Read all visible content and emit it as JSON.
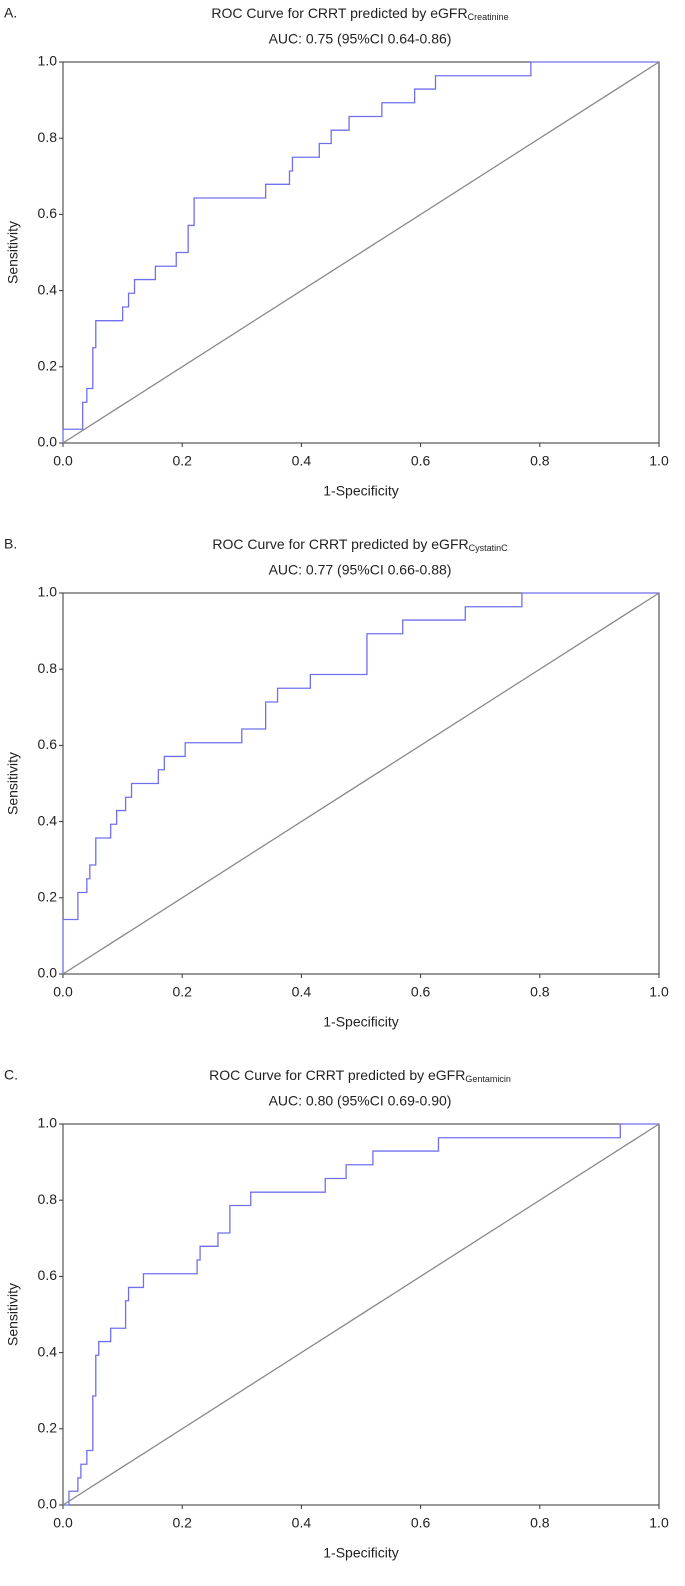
{
  "chart_data": [
    {
      "type": "line",
      "panel": "A.",
      "title": "ROC Curve for CRRT predicted by eGFR",
      "title_subscript": "Creatinine",
      "subtitle": "AUC: 0.75 (95%CI 0.64-0.86)",
      "x_label": "1-Specificity",
      "y_label": "Sensitivity",
      "xlim": [
        0,
        1
      ],
      "ylim": [
        0,
        1
      ],
      "xticks": [
        {
          "value": 0,
          "label": "0.0"
        },
        {
          "value": 0.2,
          "label": "0.2"
        },
        {
          "value": 0.4,
          "label": "0.4"
        },
        {
          "value": 0.6,
          "label": "0.6"
        },
        {
          "value": 0.8,
          "label": "0.8"
        },
        {
          "value": 1,
          "label": "1.0"
        }
      ],
      "yticks": [
        {
          "value": 0,
          "label": "0.0"
        },
        {
          "value": 0.2,
          "label": "0.2"
        },
        {
          "value": 0.4,
          "label": "0.4"
        },
        {
          "value": 0.6,
          "label": "0.6"
        },
        {
          "value": 0.8,
          "label": "0.8"
        },
        {
          "value": 1,
          "label": "1.0"
        }
      ],
      "series": [
        {
          "color": "#7070ee",
          "x": [
            0,
            0,
            0.033,
            0.033,
            0.04,
            0.04,
            0.05,
            0.05,
            0.055,
            0.055,
            0.1,
            0.1,
            0.11,
            0.11,
            0.12,
            0.12,
            0.155,
            0.155,
            0.19,
            0.19,
            0.21,
            0.21,
            0.22,
            0.22,
            0.34,
            0.34,
            0.38,
            0.38,
            0.385,
            0.385,
            0.43,
            0.43,
            0.45,
            0.45,
            0.48,
            0.48,
            0.535,
            0.535,
            0.59,
            0.59,
            0.625,
            0.625,
            0.785,
            0.785,
            1
          ],
          "values": [
            0,
            0.036,
            0.036,
            0.107,
            0.107,
            0.143,
            0.143,
            0.25,
            0.25,
            0.321,
            0.321,
            0.357,
            0.357,
            0.393,
            0.393,
            0.429,
            0.429,
            0.464,
            0.464,
            0.5,
            0.5,
            0.571,
            0.571,
            0.643,
            0.643,
            0.679,
            0.679,
            0.714,
            0.714,
            0.75,
            0.75,
            0.786,
            0.786,
            0.821,
            0.821,
            0.857,
            0.857,
            0.893,
            0.893,
            0.929,
            0.929,
            0.964,
            0.964,
            1,
            1
          ]
        },
        {
          "color": "#888888",
          "x": [
            0,
            1
          ],
          "values": [
            0,
            1
          ]
        }
      ]
    },
    {
      "type": "line",
      "panel": "B.",
      "title": "ROC Curve for CRRT predicted by eGFR",
      "title_subscript": "CystatinC",
      "subtitle": "AUC: 0.77 (95%CI 0.66-0.88)",
      "x_label": "1-Specificity",
      "y_label": "Sensitivity",
      "xlim": [
        0,
        1
      ],
      "ylim": [
        0,
        1
      ],
      "xticks": [
        {
          "value": 0,
          "label": "0.0"
        },
        {
          "value": 0.2,
          "label": "0.2"
        },
        {
          "value": 0.4,
          "label": "0.4"
        },
        {
          "value": 0.6,
          "label": "0.6"
        },
        {
          "value": 0.8,
          "label": "0.8"
        },
        {
          "value": 1,
          "label": "1.0"
        }
      ],
      "yticks": [
        {
          "value": 0,
          "label": "0.0"
        },
        {
          "value": 0.2,
          "label": "0.2"
        },
        {
          "value": 0.4,
          "label": "0.4"
        },
        {
          "value": 0.6,
          "label": "0.6"
        },
        {
          "value": 0.8,
          "label": "0.8"
        },
        {
          "value": 1,
          "label": "1.0"
        }
      ],
      "series": [
        {
          "color": "#7070ee",
          "x": [
            0,
            0,
            0.025,
            0.025,
            0.04,
            0.04,
            0.045,
            0.045,
            0.055,
            0.055,
            0.08,
            0.08,
            0.09,
            0.09,
            0.105,
            0.105,
            0.115,
            0.115,
            0.16,
            0.16,
            0.17,
            0.17,
            0.205,
            0.205,
            0.3,
            0.3,
            0.34,
            0.34,
            0.36,
            0.36,
            0.415,
            0.415,
            0.51,
            0.51,
            0.57,
            0.57,
            0.675,
            0.675,
            0.77,
            0.77,
            1
          ],
          "values": [
            0,
            0.143,
            0.143,
            0.214,
            0.214,
            0.25,
            0.25,
            0.286,
            0.286,
            0.357,
            0.357,
            0.393,
            0.393,
            0.429,
            0.429,
            0.464,
            0.464,
            0.5,
            0.5,
            0.536,
            0.536,
            0.571,
            0.571,
            0.607,
            0.607,
            0.643,
            0.643,
            0.714,
            0.714,
            0.75,
            0.75,
            0.786,
            0.786,
            0.893,
            0.893,
            0.929,
            0.929,
            0.964,
            0.964,
            1,
            1
          ]
        },
        {
          "color": "#888888",
          "x": [
            0,
            1
          ],
          "values": [
            0,
            1
          ]
        }
      ]
    },
    {
      "type": "line",
      "panel": "C.",
      "title": "ROC Curve for CRRT predicted by eGFR",
      "title_subscript": "Gentamicin",
      "subtitle": "AUC: 0.80 (95%CI 0.69-0.90)",
      "x_label": "1-Specificity",
      "y_label": "Sensitivity",
      "xlim": [
        0,
        1
      ],
      "ylim": [
        0,
        1
      ],
      "xticks": [
        {
          "value": 0,
          "label": "0.0"
        },
        {
          "value": 0.2,
          "label": "0.2"
        },
        {
          "value": 0.4,
          "label": "0.4"
        },
        {
          "value": 0.6,
          "label": "0.6"
        },
        {
          "value": 0.8,
          "label": "0.8"
        },
        {
          "value": 1,
          "label": "1.0"
        }
      ],
      "yticks": [
        {
          "value": 0,
          "label": "0.0"
        },
        {
          "value": 0.2,
          "label": "0.2"
        },
        {
          "value": 0.4,
          "label": "0.4"
        },
        {
          "value": 0.6,
          "label": "0.6"
        },
        {
          "value": 0.8,
          "label": "0.8"
        },
        {
          "value": 1,
          "label": "1.0"
        }
      ],
      "series": [
        {
          "color": "#7070ee",
          "x": [
            0,
            0.01,
            0.01,
            0.025,
            0.025,
            0.03,
            0.03,
            0.04,
            0.04,
            0.05,
            0.05,
            0.055,
            0.055,
            0.06,
            0.06,
            0.08,
            0.08,
            0.105,
            0.105,
            0.11,
            0.11,
            0.135,
            0.135,
            0.225,
            0.225,
            0.23,
            0.23,
            0.26,
            0.26,
            0.28,
            0.28,
            0.315,
            0.315,
            0.44,
            0.44,
            0.475,
            0.475,
            0.52,
            0.52,
            0.63,
            0.63,
            0.935,
            0.935,
            1
          ],
          "values": [
            0,
            0,
            0.036,
            0.036,
            0.071,
            0.071,
            0.107,
            0.107,
            0.143,
            0.143,
            0.286,
            0.286,
            0.393,
            0.393,
            0.429,
            0.429,
            0.464,
            0.464,
            0.536,
            0.536,
            0.571,
            0.571,
            0.607,
            0.607,
            0.643,
            0.643,
            0.679,
            0.679,
            0.714,
            0.714,
            0.786,
            0.786,
            0.821,
            0.821,
            0.857,
            0.857,
            0.893,
            0.893,
            0.929,
            0.929,
            0.964,
            0.964,
            1,
            1
          ]
        },
        {
          "color": "#888888",
          "x": [
            0,
            1
          ],
          "values": [
            0,
            1
          ]
        }
      ]
    }
  ]
}
